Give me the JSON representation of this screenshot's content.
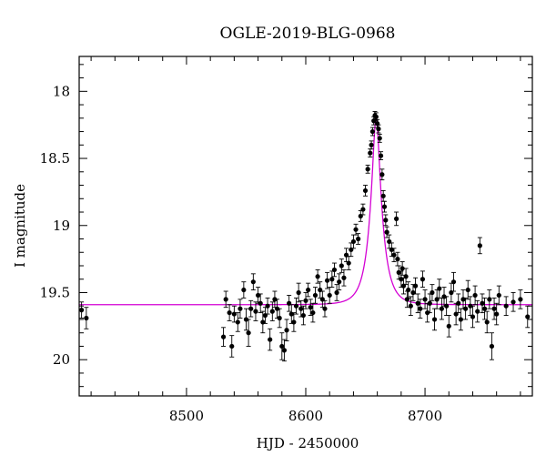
{
  "chart_data": {
    "type": "scatter",
    "title": "OGLE-2019-BLG-0968",
    "xlabel": "HJD - 2450000",
    "ylabel": "I magnitude",
    "xlim": [
      8410,
      8790
    ],
    "ylim": [
      20.27,
      17.74
    ],
    "y_axis_inverted": true,
    "x_ticks": [
      8500,
      8600,
      8700
    ],
    "y_ticks": [
      18,
      18.5,
      19,
      19.5,
      20
    ],
    "y_tick_labels": [
      "18",
      "18.5",
      "19",
      "19.5",
      "20"
    ],
    "grid": false,
    "series": [
      {
        "kind": "observations-with-error-bars",
        "color": "#000000",
        "points": [
          [
            8412,
            19.63,
            0.06
          ],
          [
            8416,
            19.69,
            0.08
          ],
          [
            8531,
            19.83,
            0.07
          ],
          [
            8533,
            19.55,
            0.06
          ],
          [
            8536,
            19.65,
            0.06
          ],
          [
            8538,
            19.9,
            0.08
          ],
          [
            8540,
            19.66,
            0.06
          ],
          [
            8543,
            19.72,
            0.07
          ],
          [
            8545,
            19.62,
            0.07
          ],
          [
            8548,
            19.48,
            0.06
          ],
          [
            8550,
            19.7,
            0.08
          ],
          [
            8552,
            19.8,
            0.1
          ],
          [
            8554,
            19.62,
            0.06
          ],
          [
            8556,
            19.42,
            0.06
          ],
          [
            8558,
            19.64,
            0.07
          ],
          [
            8560,
            19.52,
            0.06
          ],
          [
            8562,
            19.58,
            0.07
          ],
          [
            8564,
            19.72,
            0.08
          ],
          [
            8566,
            19.67,
            0.06
          ],
          [
            8568,
            19.6,
            0.06
          ],
          [
            8570,
            19.85,
            0.08
          ],
          [
            8572,
            19.64,
            0.07
          ],
          [
            8574,
            19.55,
            0.06
          ],
          [
            8576,
            19.62,
            0.07
          ],
          [
            8578,
            19.69,
            0.07
          ],
          [
            8580,
            19.9,
            0.1
          ],
          [
            8582,
            19.93,
            0.08
          ],
          [
            8584,
            19.78,
            0.08
          ],
          [
            8586,
            19.58,
            0.06
          ],
          [
            8588,
            19.66,
            0.07
          ],
          [
            8590,
            19.72,
            0.07
          ],
          [
            8592,
            19.6,
            0.06
          ],
          [
            8594,
            19.5,
            0.07
          ],
          [
            8596,
            19.62,
            0.06
          ],
          [
            8598,
            19.67,
            0.07
          ],
          [
            8600,
            19.56,
            0.06
          ],
          [
            8602,
            19.48,
            0.05
          ],
          [
            8604,
            19.61,
            0.06
          ],
          [
            8606,
            19.65,
            0.07
          ],
          [
            8608,
            19.52,
            0.06
          ],
          [
            8610,
            19.38,
            0.05
          ],
          [
            8612,
            19.48,
            0.06
          ],
          [
            8614,
            19.55,
            0.06
          ],
          [
            8616,
            19.62,
            0.06
          ],
          [
            8618,
            19.41,
            0.06
          ],
          [
            8620,
            19.52,
            0.06
          ],
          [
            8622,
            19.4,
            0.06
          ],
          [
            8624,
            19.33,
            0.05
          ],
          [
            8626,
            19.5,
            0.06
          ],
          [
            8628,
            19.42,
            0.06
          ],
          [
            8630,
            19.3,
            0.05
          ],
          [
            8632,
            19.39,
            0.06
          ],
          [
            8634,
            19.22,
            0.05
          ],
          [
            8636,
            19.28,
            0.05
          ],
          [
            8638,
            19.18,
            0.05
          ],
          [
            8640,
            19.12,
            0.05
          ],
          [
            8642,
            19.03,
            0.04
          ],
          [
            8644,
            19.1,
            0.04
          ],
          [
            8646,
            18.93,
            0.04
          ],
          [
            8648,
            18.88,
            0.04
          ],
          [
            8650,
            18.74,
            0.04
          ],
          [
            8652,
            18.58,
            0.03
          ],
          [
            8654,
            18.46,
            0.03
          ],
          [
            8655,
            18.4,
            0.03
          ],
          [
            8656,
            18.3,
            0.03
          ],
          [
            8657,
            18.22,
            0.03
          ],
          [
            8658,
            18.18,
            0.03
          ],
          [
            8659,
            18.19,
            0.03
          ],
          [
            8660,
            18.24,
            0.03
          ],
          [
            8661,
            18.28,
            0.03
          ],
          [
            8662,
            18.35,
            0.03
          ],
          [
            8663,
            18.48,
            0.03
          ],
          [
            8664,
            18.62,
            0.04
          ],
          [
            8665,
            18.78,
            0.04
          ],
          [
            8666,
            18.86,
            0.04
          ],
          [
            8667,
            18.96,
            0.04
          ],
          [
            8668,
            19.05,
            0.04
          ],
          [
            8670,
            19.12,
            0.05
          ],
          [
            8672,
            19.18,
            0.05
          ],
          [
            8674,
            19.22,
            0.05
          ],
          [
            8676,
            18.95,
            0.05
          ],
          [
            8677,
            19.25,
            0.05
          ],
          [
            8678,
            19.35,
            0.05
          ],
          [
            8680,
            19.4,
            0.06
          ],
          [
            8681,
            19.32,
            0.05
          ],
          [
            8682,
            19.45,
            0.06
          ],
          [
            8684,
            19.38,
            0.06
          ],
          [
            8685,
            19.55,
            0.06
          ],
          [
            8686,
            19.48,
            0.06
          ],
          [
            8688,
            19.6,
            0.07
          ],
          [
            8690,
            19.5,
            0.06
          ],
          [
            8692,
            19.45,
            0.06
          ],
          [
            8694,
            19.58,
            0.07
          ],
          [
            8696,
            19.62,
            0.07
          ],
          [
            8698,
            19.4,
            0.06
          ],
          [
            8700,
            19.55,
            0.07
          ],
          [
            8702,
            19.65,
            0.07
          ],
          [
            8704,
            19.58,
            0.07
          ],
          [
            8706,
            19.5,
            0.06
          ],
          [
            8708,
            19.7,
            0.08
          ],
          [
            8710,
            19.55,
            0.07
          ],
          [
            8712,
            19.47,
            0.07
          ],
          [
            8714,
            19.62,
            0.08
          ],
          [
            8716,
            19.53,
            0.07
          ],
          [
            8718,
            19.6,
            0.07
          ],
          [
            8720,
            19.75,
            0.08
          ],
          [
            8722,
            19.5,
            0.07
          ],
          [
            8724,
            19.42,
            0.07
          ],
          [
            8726,
            19.66,
            0.08
          ],
          [
            8728,
            19.58,
            0.07
          ],
          [
            8730,
            19.7,
            0.08
          ],
          [
            8732,
            19.55,
            0.07
          ],
          [
            8734,
            19.62,
            0.08
          ],
          [
            8736,
            19.48,
            0.07
          ],
          [
            8738,
            19.6,
            0.07
          ],
          [
            8740,
            19.68,
            0.08
          ],
          [
            8742,
            19.52,
            0.07
          ],
          [
            8744,
            19.64,
            0.08
          ],
          [
            8746,
            19.15,
            0.06
          ],
          [
            8748,
            19.58,
            0.07
          ],
          [
            8750,
            19.62,
            0.08
          ],
          [
            8752,
            19.72,
            0.08
          ],
          [
            8754,
            19.55,
            0.07
          ],
          [
            8756,
            19.9,
            0.1
          ],
          [
            8758,
            19.62,
            0.08
          ],
          [
            8760,
            19.66,
            0.08
          ],
          [
            8762,
            19.52,
            0.07
          ],
          [
            8768,
            19.6,
            0.07
          ],
          [
            8774,
            19.57,
            0.07
          ],
          [
            8780,
            19.55,
            0.07
          ],
          [
            8786,
            19.68,
            0.08
          ]
        ]
      },
      {
        "kind": "model-curve",
        "color": "#d400d4",
        "baseline": 19.59,
        "peak_time": 8659,
        "peak_magnitude": 18.2,
        "timescale": 10.5,
        "impact_parameter": 0.26
      }
    ]
  }
}
